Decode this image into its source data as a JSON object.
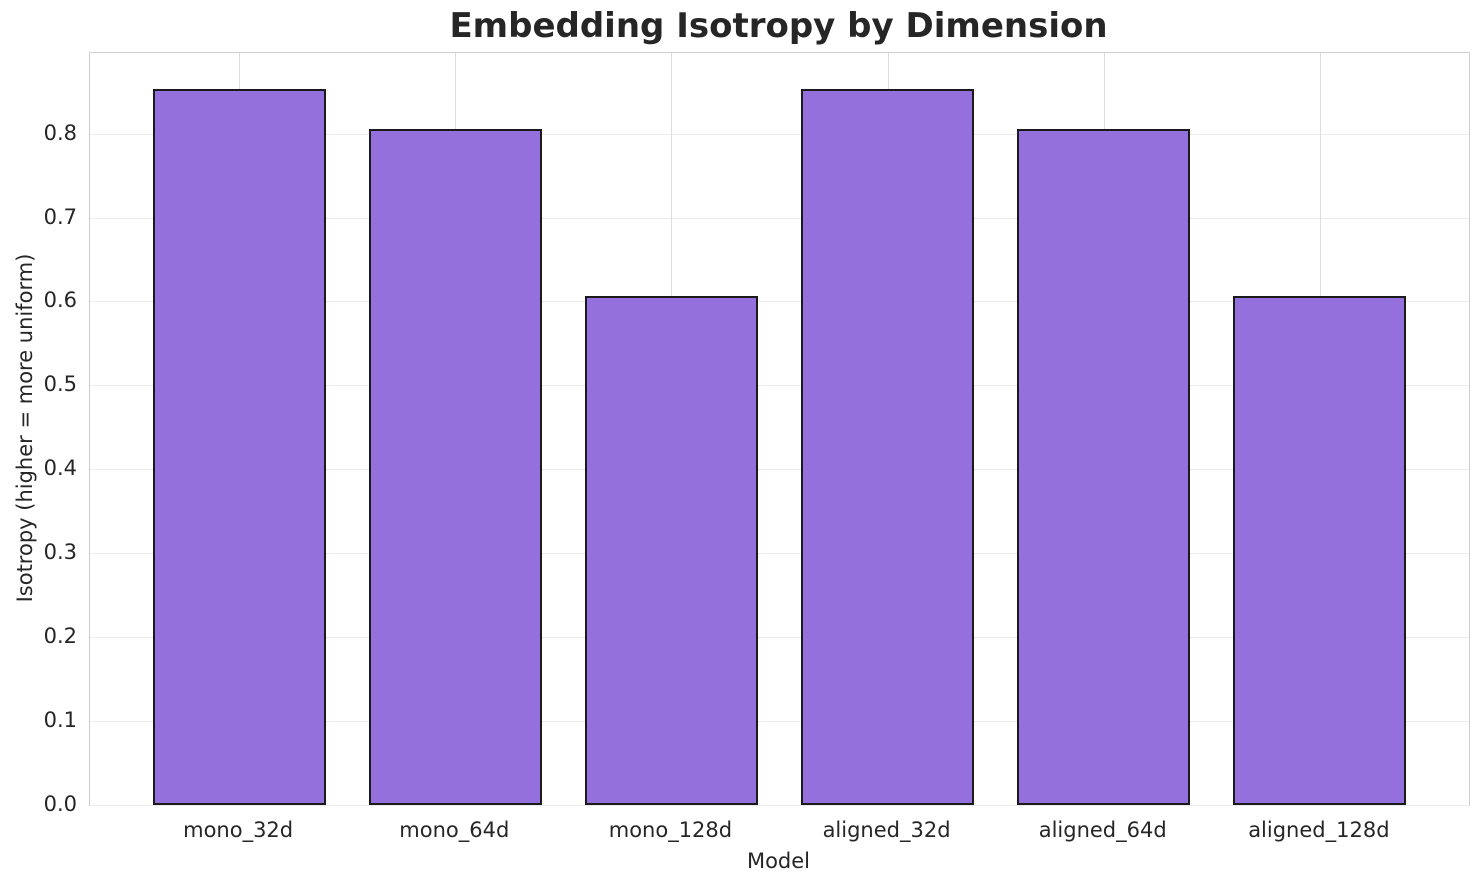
{
  "figure": {
    "background_color": "#ffffff",
    "text_color": "#262626",
    "grid_color_horizontal": "#ececec",
    "grid_color_vertical": "#dcdcdc",
    "spine_color": "#cfcfcf"
  },
  "chart_data": {
    "type": "bar",
    "title": "Embedding Isotropy by Dimension",
    "xlabel": "Model",
    "ylabel": "Isotropy (higher = more uniform)",
    "categories": [
      "mono_32d",
      "mono_64d",
      "mono_128d",
      "aligned_32d",
      "aligned_64d",
      "aligned_128d"
    ],
    "values": [
      0.853,
      0.806,
      0.606,
      0.853,
      0.806,
      0.606
    ],
    "ylim": [
      0,
      0.896
    ],
    "yticks": [
      0.0,
      0.1,
      0.2,
      0.3,
      0.4,
      0.5,
      0.6,
      0.7,
      0.8
    ],
    "ytick_labels": [
      "0.0",
      "0.1",
      "0.2",
      "0.3",
      "0.4",
      "0.5",
      "0.6",
      "0.7",
      "0.8"
    ],
    "grid": true,
    "legend": null,
    "bar_color": "#9370DB",
    "bar_edge_color": "#1a1a1a",
    "bar_width_frac": 0.8,
    "x_margin_units": 0.69
  }
}
